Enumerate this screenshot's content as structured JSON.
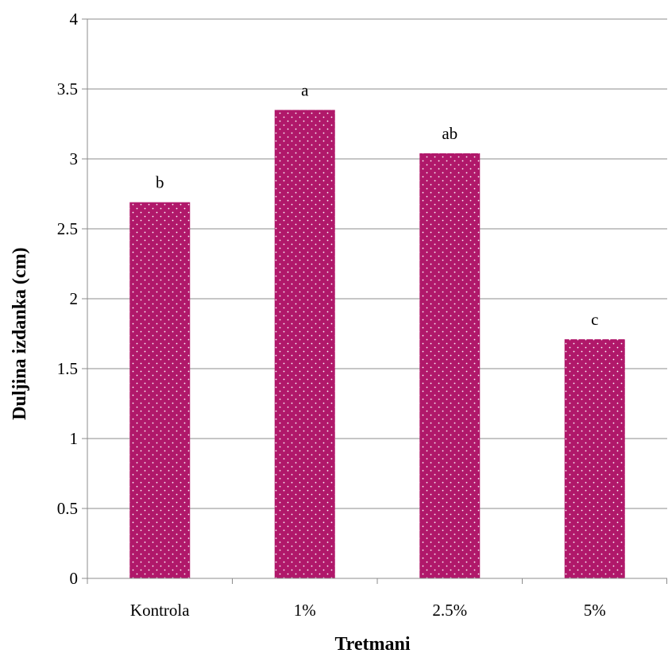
{
  "chart_data": {
    "type": "bar",
    "title": "",
    "xlabel": "Tretmani",
    "ylabel": "Duljina izdanka (cm)",
    "categories": [
      "Kontrola",
      "1%",
      "2.5%",
      "5%"
    ],
    "values": [
      2.69,
      3.35,
      3.04,
      1.71
    ],
    "data_labels": [
      "b",
      "a",
      "ab",
      "c"
    ],
    "ylim": [
      0,
      4
    ],
    "yticks": [
      0,
      0.5,
      1,
      1.5,
      2,
      2.5,
      3,
      3.5,
      4
    ],
    "ytick_labels": [
      "0",
      "0.5",
      "1",
      "1.5",
      "2",
      "2.5",
      "3",
      "3.5",
      "4"
    ],
    "grid": true,
    "legend": "none",
    "colors": {
      "bar": "#b0186a",
      "dots": "#ffffff",
      "grid": "#8c8c8c",
      "axis": "#8c8c8c"
    }
  }
}
